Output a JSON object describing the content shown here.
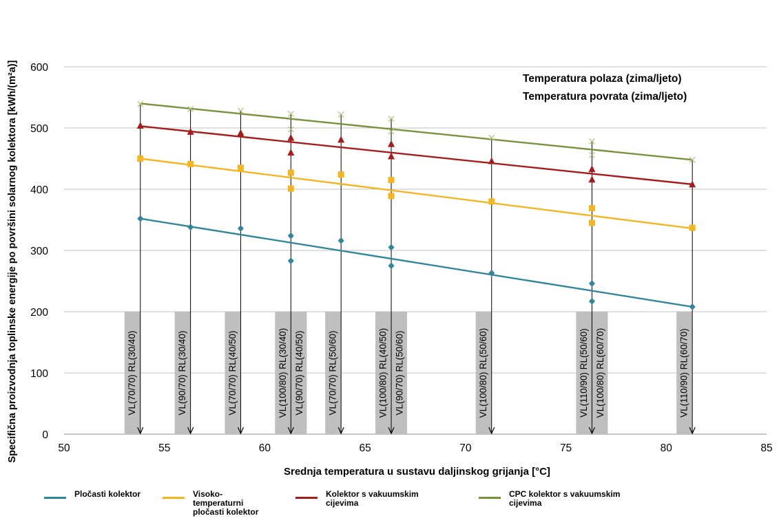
{
  "chart_data": {
    "type": "scatter",
    "xlabel": "Srednja temperatura u sustavu daljinskog grijanja [°C]",
    "ylabel": "Specifična proizvodnja toplinske energije po površini solarnog kolektora [kWh/(m²a)]",
    "xlim": [
      50,
      85
    ],
    "ylim": [
      0,
      600
    ],
    "xticks": [
      "50",
      "55",
      "60",
      "65",
      "70",
      "75",
      "80",
      "85"
    ],
    "yticks": [
      "0",
      "100",
      "200",
      "300",
      "400",
      "500",
      "600"
    ],
    "grid": "horizontal",
    "legend_position": "bottom",
    "annotations": [
      "Temperatura polaza (zima/ljeto)",
      "Temperatura povrata (zima/ljeto)"
    ],
    "operating_points": [
      {
        "label": "VL(70/70)  RL(30/40)",
        "x": 53.8
      },
      {
        "label": "VL(90/70)  RL(30/40)",
        "x": 56.3
      },
      {
        "label": "VL(70/70)  RL(40/50)",
        "x": 58.8
      },
      {
        "label": "VL(100/80)  RL(30/40)",
        "x": 61.3
      },
      {
        "label": "VL(90/70)  RL(40/50)",
        "x": 61.3
      },
      {
        "label": "VL(70/70)  RL(50/60)",
        "x": 63.8
      },
      {
        "label": "VL(100/80)  RL(40/50)",
        "x": 66.3
      },
      {
        "label": "VL(90/70)  RL(50/60)",
        "x": 66.3
      },
      {
        "label": "VL(100/80)  RL(50/60)",
        "x": 71.3
      },
      {
        "label": "VL(110/90)  RL(50/60)",
        "x": 76.3
      },
      {
        "label": "VL(100/80)  RL(60/70)",
        "x": 76.3
      },
      {
        "label": "VL(110/90)  RL(60/70)",
        "x": 81.3
      }
    ],
    "series": [
      {
        "name": "Pločasti kolektor",
        "marker": "diamond",
        "color": "#31859C",
        "x": [
          53.8,
          56.3,
          58.8,
          61.3,
          61.3,
          63.8,
          66.3,
          66.3,
          71.3,
          76.3,
          76.3,
          81.3
        ],
        "y": [
          352,
          338,
          336,
          324,
          283,
          316,
          305,
          275,
          263,
          246,
          217,
          208
        ],
        "trend": [
          [
            53.8,
            352
          ],
          [
            81.3,
            208
          ]
        ]
      },
      {
        "name": "Visoko-\ntemperaturni\npločasti kolektor",
        "marker": "square",
        "color": "#F4B521",
        "x": [
          53.8,
          56.3,
          58.8,
          61.3,
          61.3,
          63.8,
          66.3,
          66.3,
          71.3,
          76.3,
          76.3,
          81.3
        ],
        "y": [
          450,
          441,
          435,
          427,
          401,
          424,
          415,
          389,
          380,
          369,
          345,
          337
        ],
        "trend": [
          [
            53.8,
            450
          ],
          [
            81.3,
            336
          ]
        ]
      },
      {
        "name": "Kolektor s vakuumskim\ncijevima",
        "marker": "triangle",
        "color": "#A61C1C",
        "x": [
          53.8,
          56.3,
          58.8,
          61.3,
          61.3,
          63.8,
          66.3,
          66.3,
          71.3,
          76.3,
          76.3,
          81.3
        ],
        "y": [
          504,
          494,
          492,
          484,
          460,
          481,
          474,
          454,
          446,
          433,
          416,
          408
        ],
        "trend": [
          [
            53.8,
            503
          ],
          [
            81.3,
            408
          ]
        ]
      },
      {
        "name": "CPC kolektor s vakuumskim\ncijevima",
        "marker": "x",
        "color": "#77933C",
        "marker_color": "#B3C27A",
        "x": [
          53.8,
          56.3,
          58.8,
          61.3,
          61.3,
          63.8,
          66.3,
          66.3,
          71.3,
          76.3,
          76.3,
          81.3
        ],
        "y": [
          539,
          531,
          528,
          523,
          498,
          522,
          515,
          494,
          484,
          478,
          456,
          448
        ],
        "trend": [
          [
            53.8,
            540
          ],
          [
            81.3,
            448
          ]
        ]
      }
    ]
  }
}
